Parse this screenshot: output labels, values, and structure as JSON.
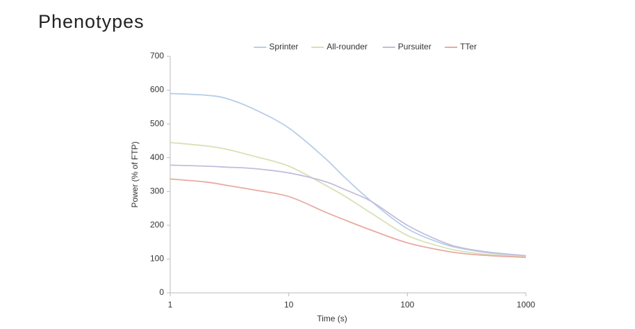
{
  "chart_data": {
    "type": "line",
    "title": "Phenotypes",
    "x_label": "Time (s)",
    "y_label": "Power (% of FTP)",
    "xscale": "log",
    "x": [
      1,
      2,
      3,
      5,
      10,
      20,
      30,
      50,
      100,
      200,
      300,
      500,
      1000
    ],
    "series": [
      {
        "name": "Sprinter",
        "color": "#b7cde8",
        "values": [
          590,
          585,
          575,
          545,
          488,
          400,
          340,
          270,
          190,
          145,
          130,
          118,
          110
        ]
      },
      {
        "name": "All-rounder",
        "color": "#d6e2b5",
        "values": [
          445,
          435,
          425,
          405,
          375,
          320,
          285,
          235,
          170,
          135,
          122,
          113,
          108
        ]
      },
      {
        "name": "Pursuiter",
        "color": "#c3bddc",
        "values": [
          378,
          375,
          372,
          368,
          355,
          330,
          305,
          270,
          200,
          150,
          132,
          120,
          110
        ]
      },
      {
        "name": "TTer",
        "color": "#e8aaa3",
        "values": [
          337,
          328,
          318,
          305,
          285,
          240,
          215,
          185,
          148,
          125,
          116,
          110,
          105
        ]
      }
    ],
    "xlim": [
      1,
      1000
    ],
    "xticks": [
      1,
      10,
      100,
      1000
    ],
    "ylim": [
      0,
      700
    ],
    "yticks": [
      0,
      100,
      200,
      300,
      400,
      500,
      600,
      700
    ],
    "grid": false,
    "legend": "top"
  }
}
